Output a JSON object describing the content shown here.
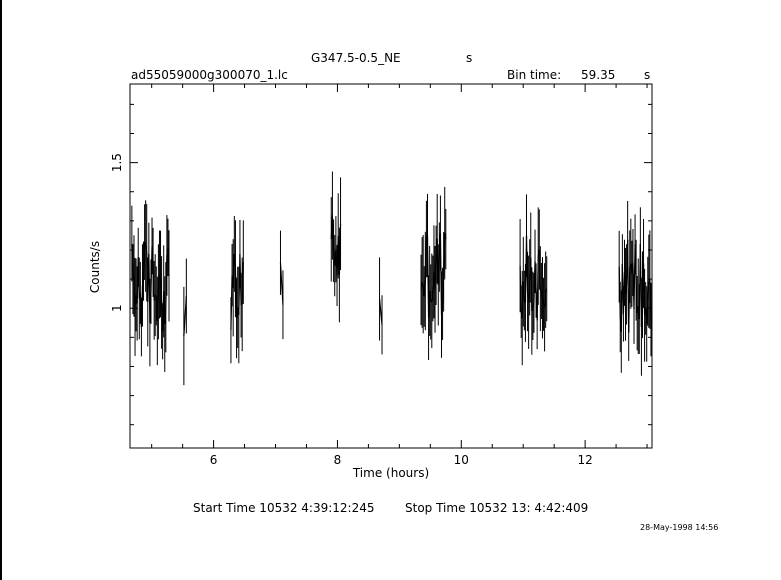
{
  "header": {
    "target": "G347.5-0.5_NE",
    "target_unit": "s",
    "file": "ad55059000g300070_1.lc",
    "bin_label": "Bin time:",
    "bin_value": "59.35",
    "bin_unit": "s"
  },
  "footer": {
    "start": "Start Time 10532  4:39:12:245",
    "stop": "Stop Time 10532 13: 4:42:409",
    "timestamp": "28-May-1998 14:56"
  },
  "chart_data": {
    "type": "line",
    "style": "error-bars",
    "title": "G347.5-0.5_NE",
    "xlabel": "Time (hours)",
    "ylabel": "Counts/s",
    "xlim": [
      4.65,
      13.08
    ],
    "ylim": [
      0.52,
      1.77
    ],
    "xticks": [
      6,
      8,
      10,
      12
    ],
    "yticks": [
      1,
      1.5
    ],
    "xticklabels": [
      "6",
      "8",
      "10",
      "12"
    ],
    "yticklabels": [
      "1",
      "1.5"
    ],
    "grid": false,
    "segments": [
      {
        "t_start": 4.68,
        "t_end": 5.28,
        "level": 1.08,
        "amp": 0.16
      },
      {
        "t_start": 5.52,
        "t_end": 5.56,
        "level": 1.02,
        "amp": 0.14
      },
      {
        "t_start": 6.28,
        "t_end": 6.48,
        "level": 1.05,
        "amp": 0.14
      },
      {
        "t_start": 7.08,
        "t_end": 7.12,
        "level": 1.12,
        "amp": 0.14
      },
      {
        "t_start": 7.9,
        "t_end": 8.05,
        "level": 1.2,
        "amp": 0.15
      },
      {
        "t_start": 8.68,
        "t_end": 8.72,
        "level": 0.98,
        "amp": 0.1
      },
      {
        "t_start": 9.35,
        "t_end": 9.75,
        "level": 1.12,
        "amp": 0.16
      },
      {
        "t_start": 10.95,
        "t_end": 11.38,
        "level": 1.1,
        "amp": 0.15
      },
      {
        "t_start": 12.55,
        "t_end": 13.08,
        "level": 1.08,
        "amp": 0.17
      }
    ]
  }
}
